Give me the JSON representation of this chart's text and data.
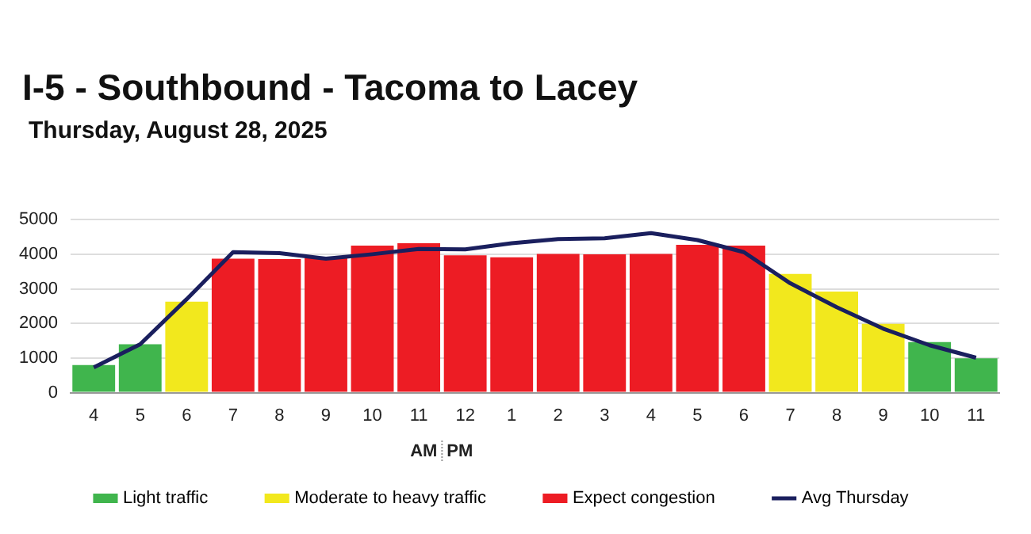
{
  "chart_data": {
    "type": "bar",
    "title": "I-5 - Southbound - Tacoma to Lacey",
    "subtitle": "Thursday, August 28, 2025",
    "categories": [
      "4",
      "5",
      "6",
      "7",
      "8",
      "9",
      "10",
      "11",
      "12",
      "1",
      "2",
      "3",
      "4",
      "5",
      "6",
      "7",
      "8",
      "9",
      "10",
      "11"
    ],
    "series": [
      {
        "name": "Light traffic",
        "color": "#40b54d",
        "values": [
          800,
          1400,
          null,
          null,
          null,
          null,
          null,
          null,
          null,
          null,
          null,
          null,
          null,
          null,
          null,
          null,
          null,
          null,
          1460,
          990
        ]
      },
      {
        "name": "Moderate to heavy traffic",
        "color": "#f2e81d",
        "values": [
          null,
          null,
          2630,
          null,
          null,
          null,
          null,
          null,
          null,
          null,
          null,
          null,
          null,
          null,
          null,
          3430,
          2920,
          1990,
          null,
          null
        ]
      },
      {
        "name": "Expect congestion",
        "color": "#ed1c24",
        "values": [
          null,
          null,
          null,
          3870,
          3860,
          3890,
          4250,
          4320,
          3970,
          3910,
          4010,
          4000,
          4010,
          4270,
          4250,
          null,
          null,
          null,
          null,
          null
        ]
      },
      {
        "name": "Avg Thursday",
        "type": "line",
        "color": "#1a1f5e",
        "values": [
          730,
          1400,
          2700,
          4060,
          4030,
          3870,
          4000,
          4150,
          4140,
          4320,
          4440,
          4460,
          4610,
          4410,
          4060,
          3160,
          2470,
          1850,
          1370,
          1010
        ]
      }
    ],
    "stacked": true,
    "ylim": [
      0,
      5000
    ],
    "yticks": [
      0,
      1000,
      2000,
      3000,
      4000,
      5000
    ],
    "grid": "y",
    "legend": "bottom",
    "marker": "none",
    "annotations": [
      "AM",
      "PM"
    ]
  }
}
